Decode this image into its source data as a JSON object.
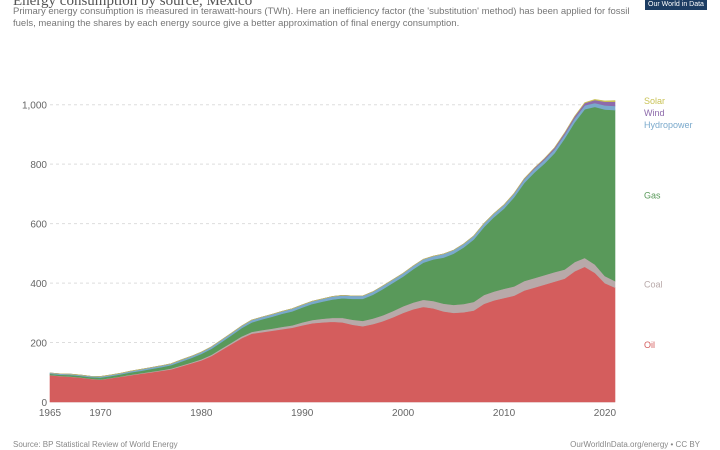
{
  "header": {
    "title": "Energy consumption by source, Mexico",
    "subtitle": "Primary energy consumption is measured in terawatt-hours (TWh). Here an inefficiency factor (the 'substitution' method) has been applied for fossil fuels, meaning the shares by each energy source give a better approximation of final energy consumption.",
    "logo_text": "Our World in Data"
  },
  "footer": {
    "source": "Source: BP Statistical Review of World Energy",
    "license": "OurWorldInData.org/energy • CC BY"
  },
  "chart_data": {
    "type": "area",
    "stacked": true,
    "title": "Energy consumption by source, Mexico",
    "xlabel": "",
    "ylabel": "",
    "xlim": [
      1965,
      2021
    ],
    "ylim": [
      0,
      1100
    ],
    "xticks": [
      1965,
      1970,
      1980,
      1990,
      2000,
      2010,
      2020
    ],
    "yticks": [
      0,
      200,
      400,
      600,
      800,
      1000
    ],
    "ytick_labels": [
      "0",
      "200",
      "400",
      "600",
      "800",
      "1,000"
    ],
    "grid": true,
    "legend": "right, aligned to series",
    "x": [
      1965,
      1966,
      1967,
      1968,
      1969,
      1970,
      1971,
      1972,
      1973,
      1974,
      1975,
      1976,
      1977,
      1978,
      1979,
      1980,
      1981,
      1982,
      1983,
      1984,
      1985,
      1986,
      1987,
      1988,
      1989,
      1990,
      1991,
      1992,
      1993,
      1994,
      1995,
      1996,
      1997,
      1998,
      1999,
      2000,
      2001,
      2002,
      2003,
      2004,
      2005,
      2006,
      2007,
      2008,
      2009,
      2010,
      2011,
      2012,
      2013,
      2014,
      2015,
      2016,
      2017,
      2018,
      2019,
      2020,
      2021
    ],
    "series": [
      {
        "name": "Oil",
        "color": "#d45d5d",
        "values": [
          90,
          87,
          85,
          82,
          78,
          75,
          80,
          85,
          90,
          95,
          100,
          105,
          110,
          120,
          130,
          140,
          155,
          175,
          195,
          215,
          230,
          235,
          240,
          245,
          250,
          258,
          265,
          268,
          270,
          268,
          260,
          255,
          262,
          272,
          285,
          300,
          312,
          320,
          315,
          305,
          300,
          302,
          308,
          330,
          342,
          350,
          358,
          375,
          385,
          395,
          405,
          415,
          440,
          455,
          435,
          400,
          385
        ]
      },
      {
        "name": "Coal",
        "color": "#b8a9a9",
        "values": [
          1,
          1,
          1,
          1,
          1,
          1,
          1,
          1,
          2,
          2,
          2,
          2,
          3,
          3,
          3,
          4,
          4,
          5,
          5,
          6,
          6,
          7,
          7,
          8,
          8,
          10,
          11,
          12,
          13,
          15,
          17,
          18,
          19,
          20,
          21,
          22,
          23,
          24,
          25,
          26,
          27,
          28,
          29,
          30,
          30,
          31,
          31,
          32,
          32,
          32,
          32,
          31,
          31,
          30,
          28,
          24,
          22
        ]
      },
      {
        "name": "Gas",
        "color": "#59995a",
        "values": [
          4,
          4,
          5,
          5,
          5,
          6,
          6,
          7,
          8,
          8,
          9,
          10,
          11,
          13,
          15,
          18,
          20,
          22,
          25,
          28,
          32,
          36,
          40,
          44,
          47,
          50,
          54,
          58,
          62,
          66,
          70,
          74,
          80,
          88,
          95,
          100,
          112,
          125,
          140,
          155,
          172,
          190,
          210,
          228,
          250,
          270,
          300,
          330,
          355,
          375,
          400,
          440,
          470,
          500,
          530,
          560,
          575
        ]
      },
      {
        "name": "Hydropower",
        "color": "#7aa9cc",
        "values": [
          3,
          3,
          3,
          3,
          3,
          4,
          4,
          4,
          4,
          5,
          5,
          5,
          5,
          6,
          6,
          6,
          7,
          7,
          7,
          7,
          8,
          8,
          8,
          8,
          9,
          9,
          9,
          9,
          10,
          10,
          10,
          10,
          10,
          11,
          11,
          11,
          11,
          11,
          11,
          12,
          12,
          12,
          12,
          12,
          12,
          12,
          12,
          12,
          12,
          13,
          13,
          13,
          13,
          13,
          13,
          14,
          14
        ]
      },
      {
        "name": "Wind",
        "color": "#8d6aab",
        "values": [
          0,
          0,
          0,
          0,
          0,
          0,
          0,
          0,
          0,
          0,
          0,
          0,
          0,
          0,
          0,
          0,
          0,
          0,
          0,
          0,
          0,
          0,
          0,
          0,
          0,
          0,
          0,
          0,
          0,
          0,
          0,
          0,
          0,
          0,
          0,
          0,
          0,
          0,
          0,
          0,
          0,
          0,
          0,
          0,
          0,
          0.5,
          1,
          2,
          3,
          4,
          5,
          6,
          7,
          8,
          10,
          12,
          14
        ]
      },
      {
        "name": "Solar",
        "color": "#c9c255",
        "values": [
          0,
          0,
          0,
          0,
          0,
          0,
          0,
          0,
          0,
          0,
          0,
          0,
          0,
          0,
          0,
          0,
          0,
          0,
          0,
          0,
          0,
          0,
          0,
          0,
          0,
          0,
          0,
          0,
          0,
          0,
          0,
          0,
          0,
          0,
          0,
          0,
          0,
          0,
          0,
          0,
          0,
          0,
          0,
          0,
          0,
          0,
          0,
          0,
          0,
          0,
          0,
          0,
          0,
          1,
          2,
          3,
          4
        ]
      }
    ]
  }
}
